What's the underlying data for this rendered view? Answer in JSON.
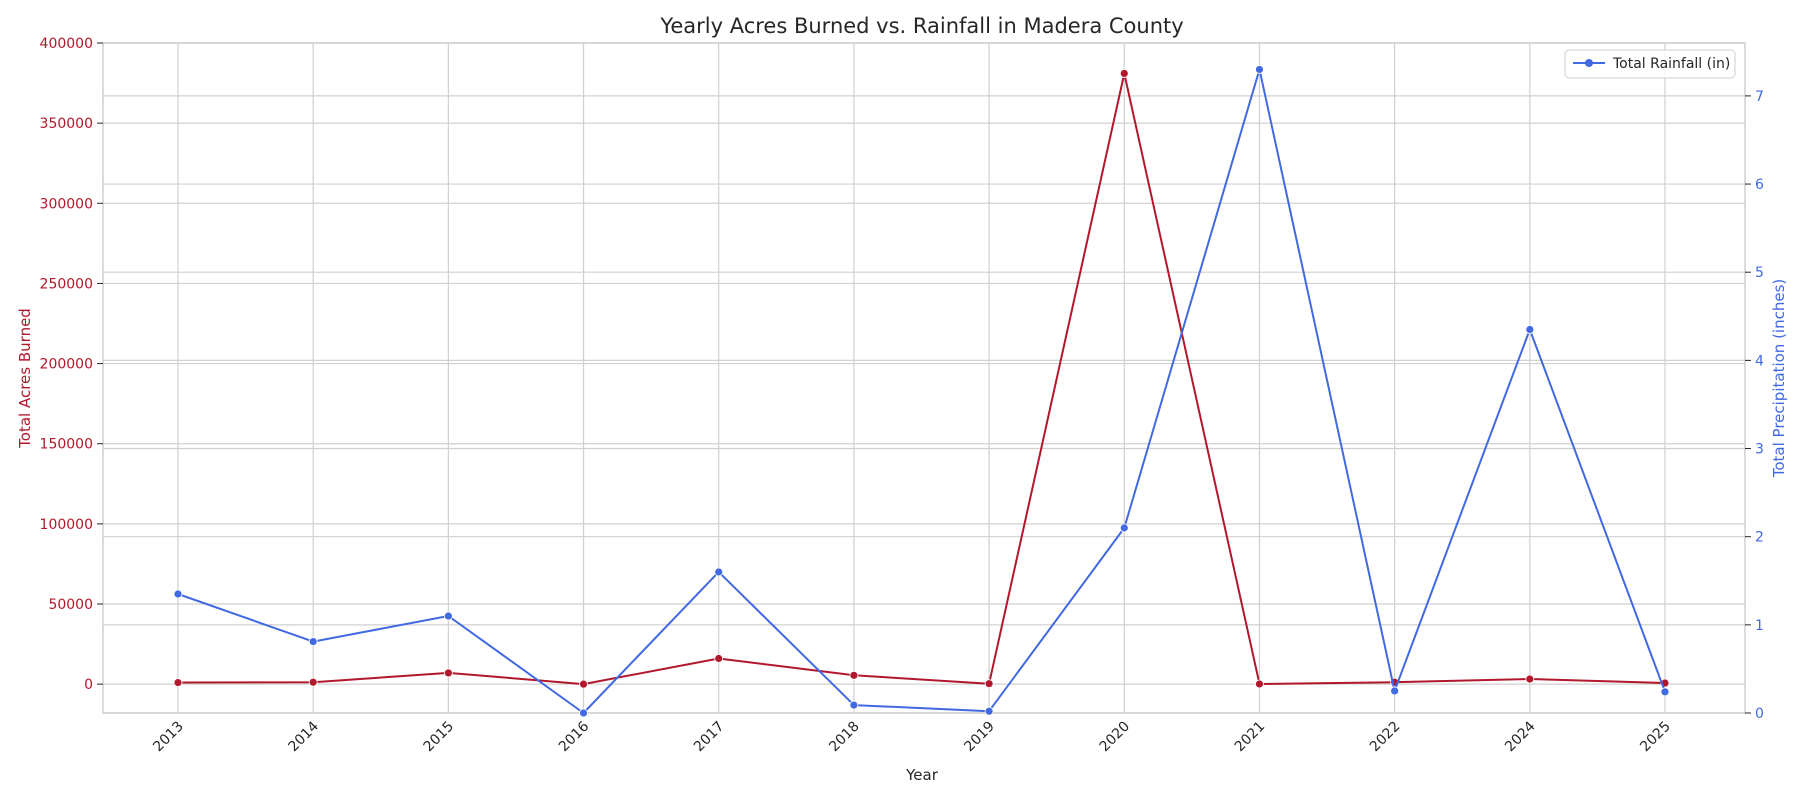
{
  "chart_data": {
    "type": "line",
    "title": "Yearly Acres Burned vs. Rainfall in Madera County",
    "xlabel": "Year",
    "categories": [
      "2013",
      "2014",
      "2015",
      "2016",
      "2017",
      "2018",
      "2019",
      "2020",
      "2021",
      "2022",
      "2024",
      "2025"
    ],
    "y_left": {
      "label": "Total Acres Burned",
      "ticks": [
        "0",
        "50000",
        "100000",
        "150000",
        "200000",
        "250000",
        "300000",
        "350000",
        "400000"
      ],
      "range": [
        -18000,
        400000
      ],
      "color": "#b2182b"
    },
    "y_right": {
      "label": "Total Precipitation (inches)",
      "ticks": [
        "0",
        "1",
        "2",
        "3",
        "4",
        "5",
        "6",
        "7"
      ],
      "range": [
        0,
        7.6
      ],
      "color": "#4169e1"
    },
    "series": [
      {
        "axis": "left",
        "color": "#b2182b",
        "values": [
          1000,
          1200,
          7000,
          0,
          16000,
          5500,
          300,
          381000,
          100,
          1200,
          3200,
          700
        ]
      },
      {
        "name": "Total Rainfall (in)",
        "axis": "right",
        "color": "#4169e1",
        "values": [
          1.35,
          0.81,
          1.1,
          0.0,
          1.6,
          0.09,
          0.02,
          2.1,
          7.3,
          0.25,
          4.35,
          0.24
        ]
      }
    ],
    "legend": {
      "position": "top-right",
      "entries": [
        "Total Rainfall (in)"
      ]
    },
    "grid": true
  }
}
